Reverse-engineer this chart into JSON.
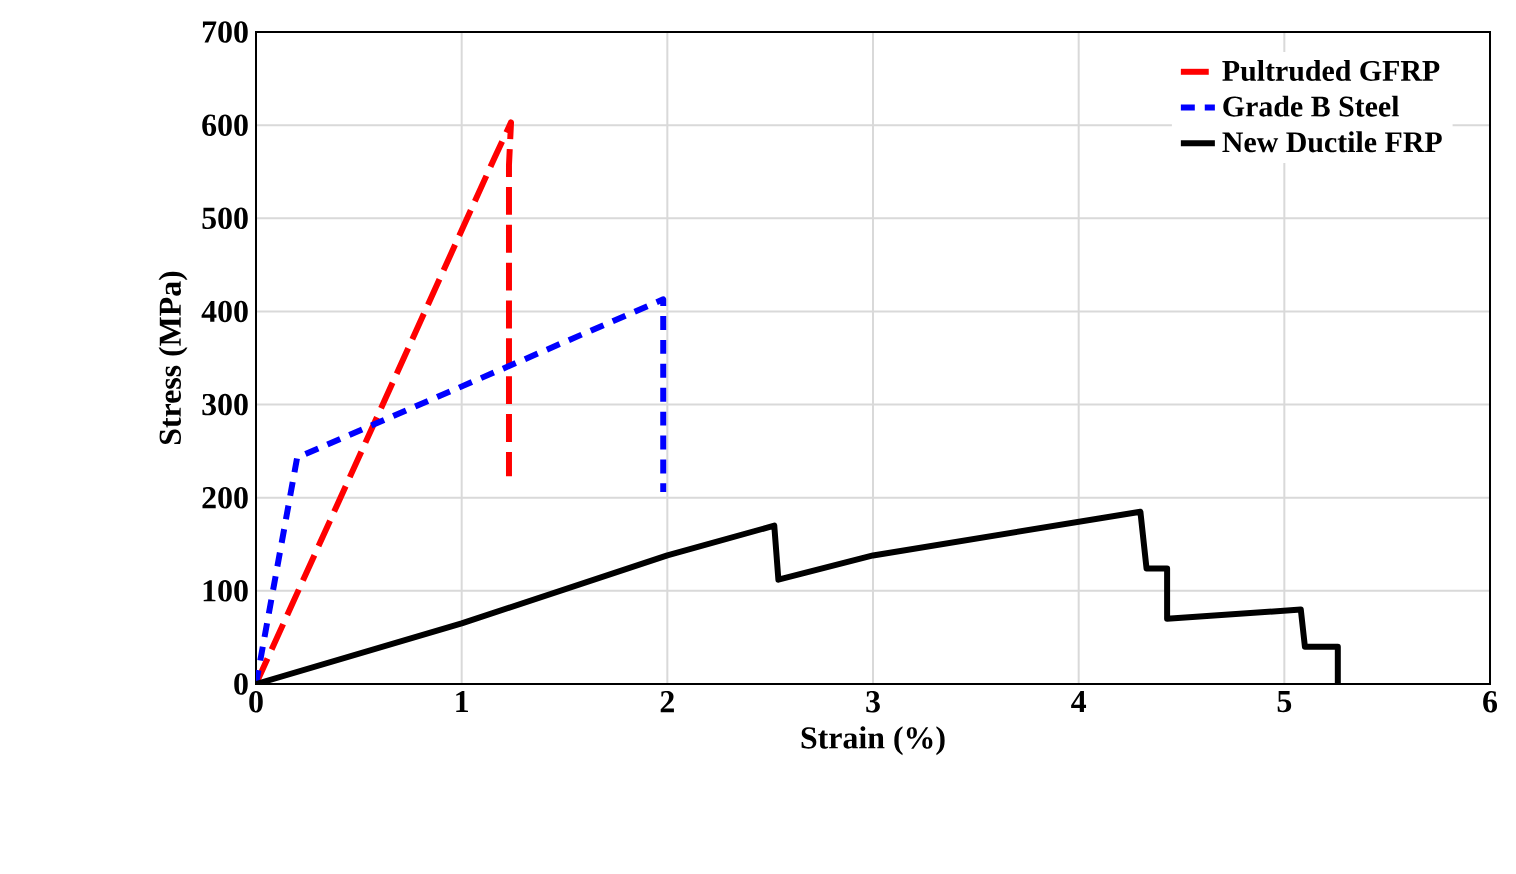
{
  "chart_data": {
    "type": "line",
    "xlabel": "Strain (%)",
    "ylabel": "Stress (MPa)",
    "xlim": [
      0,
      6
    ],
    "ylim": [
      0,
      700
    ],
    "xticks": [
      0,
      1,
      2,
      3,
      4,
      5,
      6
    ],
    "yticks": [
      0,
      100,
      200,
      300,
      400,
      500,
      600,
      700
    ],
    "grid": true,
    "legend": "top right",
    "marker": "none",
    "series": [
      {
        "name": "Pultruded GFRP",
        "color": "#ff0000",
        "line_style": "dashed",
        "x": [
          0,
          1.16,
          1.24,
          1.23,
          1.23
        ],
        "values": [
          0,
          565,
          603,
          557,
          223
        ]
      },
      {
        "name": "Grade B Steel",
        "color": "#0000ff",
        "line_style": "dashed",
        "x": [
          0,
          0.2,
          1.98,
          1.98
        ],
        "values": [
          0,
          243,
          413,
          206
        ]
      },
      {
        "name": "New Ductile FRP",
        "color": "#000000",
        "line_style": "solid",
        "x": [
          0,
          1,
          2,
          2.52,
          2.54,
          3,
          4.3,
          4.33,
          4.43,
          4.43,
          5.08,
          5.1,
          5.26,
          5.26
        ],
        "values": [
          0,
          65,
          138,
          170,
          112,
          138,
          185,
          124,
          124,
          70,
          80,
          40,
          40,
          0
        ]
      }
    ]
  }
}
